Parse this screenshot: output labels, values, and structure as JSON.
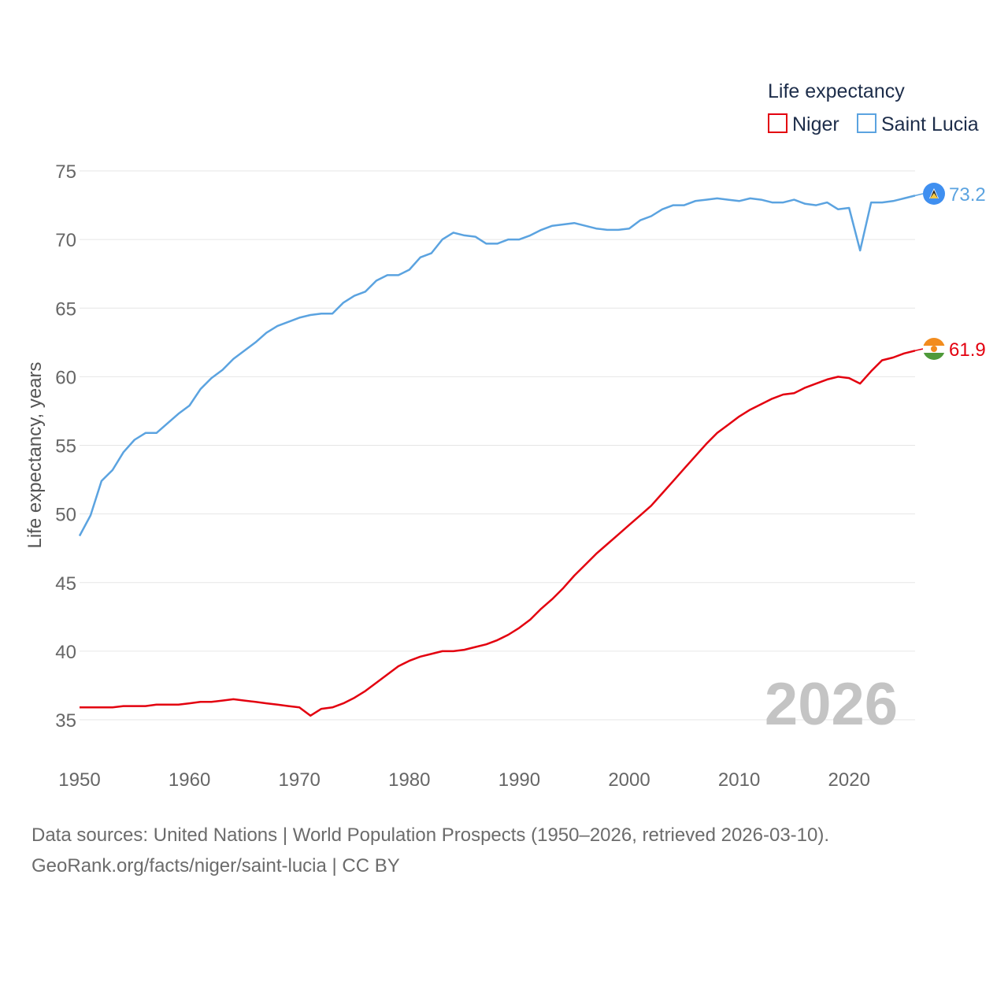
{
  "chart_data": {
    "type": "line",
    "legend_title": "Life expectancy",
    "ylabel": "Life expectancy, years",
    "xlabel": "",
    "ylim": [
      35,
      75
    ],
    "xlim": [
      1950,
      2026
    ],
    "yticks": [
      35,
      40,
      45,
      50,
      55,
      60,
      65,
      70,
      75
    ],
    "xticks": [
      1950,
      1960,
      1970,
      1980,
      1990,
      2000,
      2010,
      2020
    ],
    "current_year": "2026",
    "x": [
      1950,
      1951,
      1952,
      1953,
      1954,
      1955,
      1956,
      1957,
      1958,
      1959,
      1960,
      1961,
      1962,
      1963,
      1964,
      1965,
      1966,
      1967,
      1968,
      1969,
      1970,
      1971,
      1972,
      1973,
      1974,
      1975,
      1976,
      1977,
      1978,
      1979,
      1980,
      1981,
      1982,
      1983,
      1984,
      1985,
      1986,
      1987,
      1988,
      1989,
      1990,
      1991,
      1992,
      1993,
      1994,
      1995,
      1996,
      1997,
      1998,
      1999,
      2000,
      2001,
      2002,
      2003,
      2004,
      2005,
      2006,
      2007,
      2008,
      2009,
      2010,
      2011,
      2012,
      2013,
      2014,
      2015,
      2016,
      2017,
      2018,
      2019,
      2020,
      2021,
      2022,
      2023,
      2024,
      2025,
      2026
    ],
    "series": [
      {
        "name": "Niger",
        "color": "#e3000f",
        "flag": "niger-flag-icon",
        "end_label": "61.9",
        "values": [
          35.9,
          35.9,
          35.9,
          35.9,
          36.0,
          36.0,
          36.0,
          36.1,
          36.1,
          36.1,
          36.2,
          36.3,
          36.3,
          36.4,
          36.5,
          36.4,
          36.3,
          36.2,
          36.1,
          36.0,
          35.9,
          35.3,
          35.8,
          35.9,
          36.2,
          36.6,
          37.1,
          37.7,
          38.3,
          38.9,
          39.3,
          39.6,
          39.8,
          40.0,
          40.0,
          40.1,
          40.3,
          40.5,
          40.8,
          41.2,
          41.7,
          42.3,
          43.1,
          43.8,
          44.6,
          45.5,
          46.3,
          47.1,
          47.8,
          48.5,
          49.2,
          49.9,
          50.6,
          51.5,
          52.4,
          53.3,
          54.2,
          55.1,
          55.9,
          56.5,
          57.1,
          57.6,
          58.0,
          58.4,
          58.7,
          58.8,
          59.2,
          59.5,
          59.8,
          60.0,
          59.9,
          59.5,
          60.4,
          61.2,
          61.4,
          61.7,
          61.9
        ]
      },
      {
        "name": "Saint Lucia",
        "color": "#5ba3e0",
        "flag": "saint-lucia-flag-icon",
        "end_label": "73.2",
        "values": [
          48.4,
          49.9,
          52.4,
          53.2,
          54.5,
          55.4,
          55.9,
          55.9,
          56.6,
          57.3,
          57.9,
          59.1,
          59.9,
          60.5,
          61.3,
          61.9,
          62.5,
          63.2,
          63.7,
          64.0,
          64.3,
          64.5,
          64.6,
          64.6,
          65.4,
          65.9,
          66.2,
          67.0,
          67.4,
          67.4,
          67.8,
          68.7,
          69.0,
          70.0,
          70.5,
          70.3,
          70.2,
          69.7,
          69.7,
          70.0,
          70.0,
          70.3,
          70.7,
          71.0,
          71.1,
          71.2,
          71.0,
          70.8,
          70.7,
          70.7,
          70.8,
          71.4,
          71.7,
          72.2,
          72.5,
          72.5,
          72.8,
          72.9,
          73.0,
          72.9,
          72.8,
          73.0,
          72.9,
          72.7,
          72.7,
          72.9,
          72.6,
          72.5,
          72.7,
          72.2,
          72.3,
          69.2,
          72.7,
          72.7,
          72.8,
          73.0,
          73.2
        ]
      }
    ]
  },
  "footer": {
    "line1": "Data sources: United Nations | World Population Prospects (1950–2026, retrieved 2026-03-10).",
    "line2": "GeoRank.org/facts/niger/saint-lucia | CC BY"
  }
}
